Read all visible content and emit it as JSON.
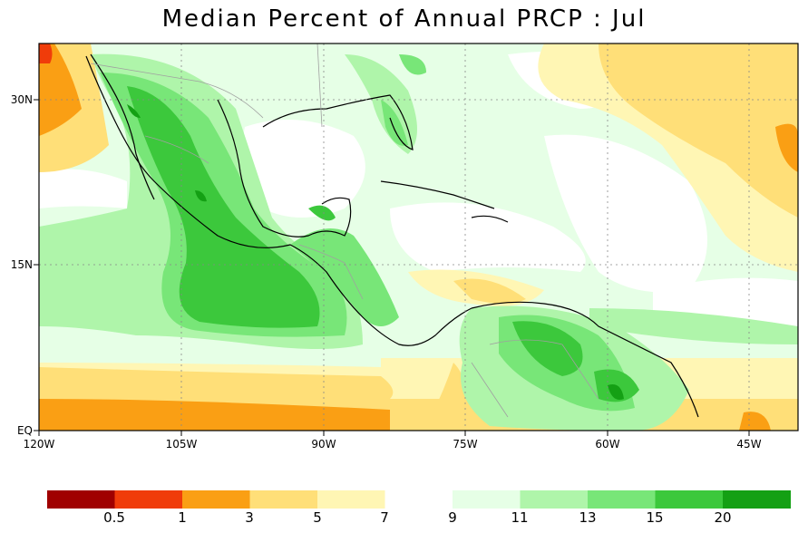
{
  "title": "Median Percent of Annual PRCP :   Jul",
  "map": {
    "lat_labels": [
      "30N",
      "15N",
      "EQ"
    ],
    "lon_labels": [
      "120W",
      "105W",
      "90W",
      "75W",
      "60W",
      "45W"
    ]
  },
  "legend": {
    "bins": [
      {
        "color": "#a00000"
      },
      {
        "color": "#f03c0a"
      },
      {
        "color": "#fa9f14"
      },
      {
        "color": "#ffdf78"
      },
      {
        "color": "#fff6b4"
      },
      {
        "color": "#ffffff"
      },
      {
        "color": "#e6ffe6"
      },
      {
        "color": "#aff5aa"
      },
      {
        "color": "#78e678"
      },
      {
        "color": "#3cc83c"
      },
      {
        "color": "#14a014"
      }
    ],
    "labels": [
      "0.5",
      "1",
      "3",
      "5",
      "7",
      "9",
      "11",
      "13",
      "15",
      "20"
    ]
  }
}
